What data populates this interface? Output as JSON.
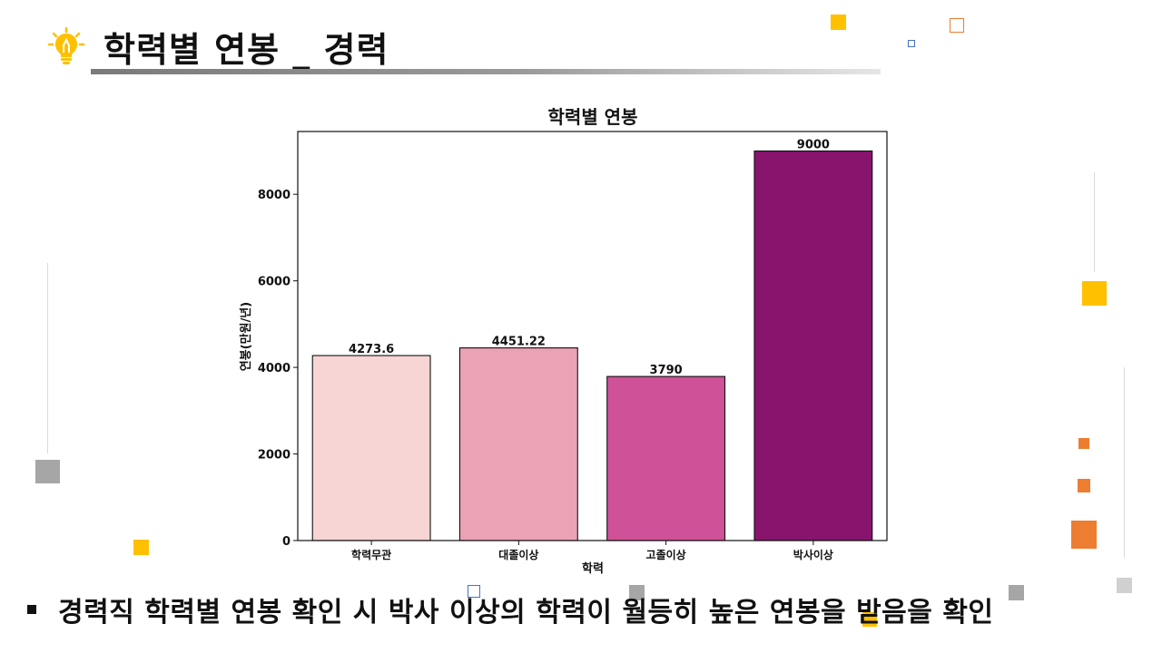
{
  "slide": {
    "title": "학력별 연봉 _ 경력",
    "caption": "경력직 학력별 연봉 확인 시 박사 이상의 학력이 월등히 높은 연봉을 받음을 확인",
    "icon": "lightbulb-icon",
    "accent_color": "#FFC000"
  },
  "chart_data": {
    "type": "bar",
    "title": "학력별 연봉",
    "xlabel": "학력",
    "ylabel": "연봉(만원/년)",
    "categories": [
      "학력무관",
      "대졸이상",
      "고졸이상",
      "박사이상"
    ],
    "values": [
      4273.6,
      4451.22,
      3790,
      9000
    ],
    "value_labels": [
      "4273.6",
      "4451.22",
      "3790",
      "9000"
    ],
    "colors": [
      "#F7D5D4",
      "#EBA2B5",
      "#CF5298",
      "#88146E"
    ],
    "ylim": [
      0,
      9450
    ],
    "yticks": [
      0,
      2000,
      4000,
      6000,
      8000
    ],
    "grid": false,
    "legend": "none"
  }
}
